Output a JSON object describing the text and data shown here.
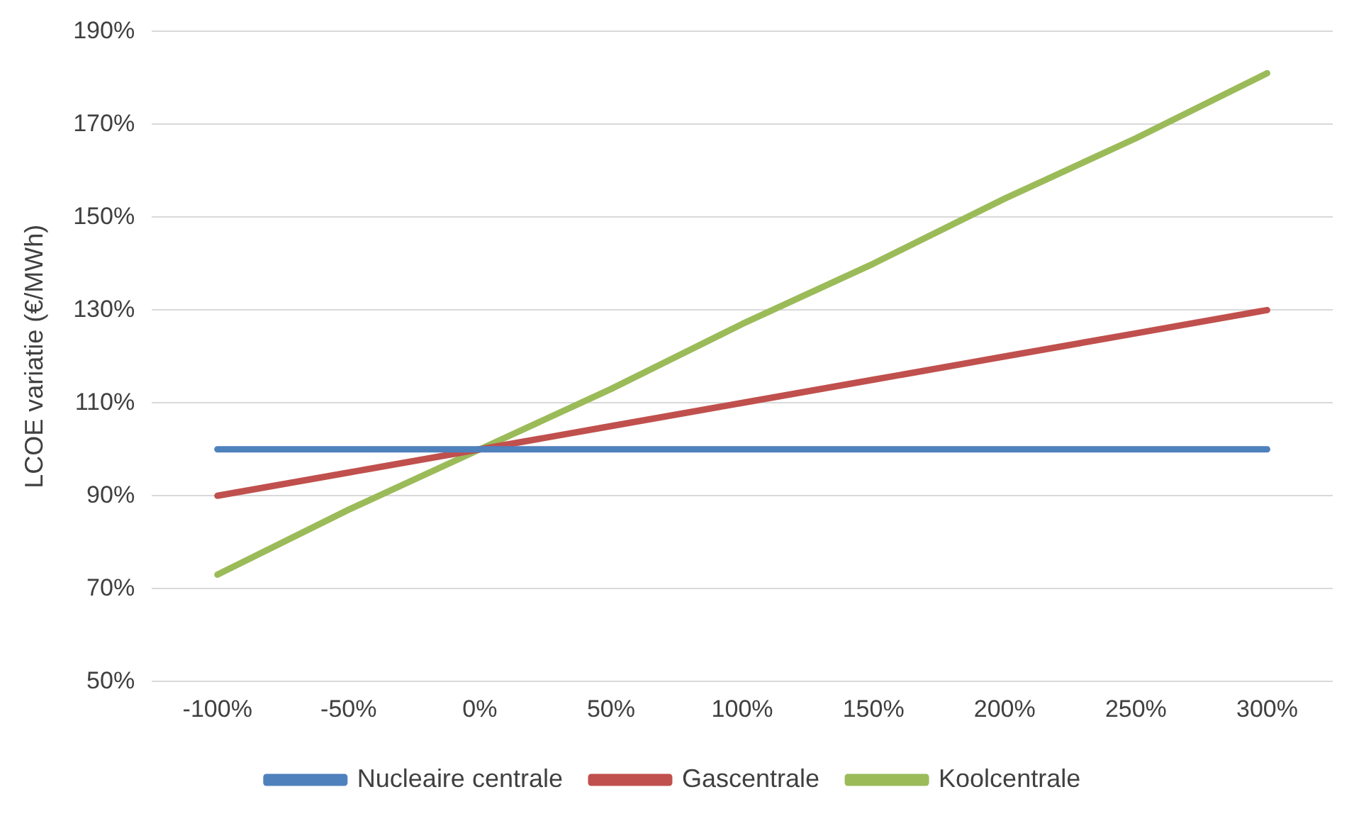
{
  "chart_data": {
    "type": "line",
    "ylabel": "LCOE variatie (€/MWh)",
    "categories": [
      "-100%",
      "-50%",
      "0%",
      "50%",
      "100%",
      "150%",
      "200%",
      "250%",
      "300%"
    ],
    "series": [
      {
        "name": "Nucleaire centrale",
        "color": "#4f81bd",
        "values": [
          100,
          100,
          100,
          100,
          100,
          100,
          100,
          100,
          100
        ]
      },
      {
        "name": "Gascentrale",
        "color": "#c0504d",
        "values": [
          90,
          95,
          100,
          105,
          110,
          115,
          120,
          125,
          130
        ]
      },
      {
        "name": "Koolcentrale",
        "color": "#9bbb59",
        "values": [
          73,
          87,
          100,
          113,
          127,
          140,
          154,
          167,
          181
        ]
      }
    ],
    "ylim": [
      50,
      190
    ],
    "yticks": [
      {
        "value": 50,
        "label": "50%"
      },
      {
        "value": 70,
        "label": "70%"
      },
      {
        "value": 90,
        "label": "90%"
      },
      {
        "value": 110,
        "label": "110%"
      },
      {
        "value": 130,
        "label": "130%"
      },
      {
        "value": 150,
        "label": "150%"
      },
      {
        "value": 170,
        "label": "170%"
      },
      {
        "value": 190,
        "label": "190%"
      }
    ],
    "grid": "y",
    "legend": "bottom",
    "marker": "none",
    "line_style": "solid"
  }
}
